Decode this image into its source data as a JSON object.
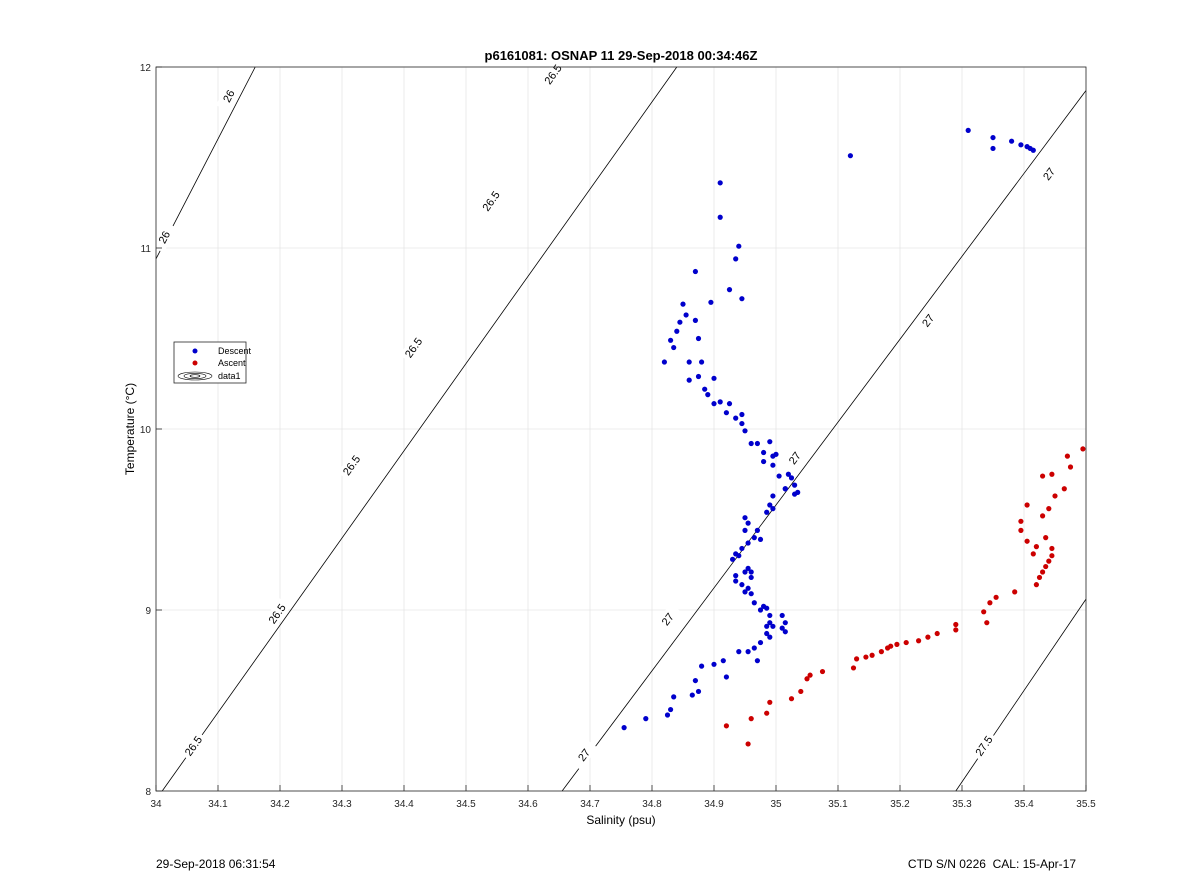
{
  "chart_data": {
    "type": "scatter",
    "title": "p6161081: OSNAP 11 29-Sep-2018 00:34:46Z",
    "xlabel": "Salinity (psu)",
    "ylabel": "Temperature (°C)",
    "xlim": [
      34,
      35.5
    ],
    "ylim": [
      8,
      12
    ],
    "x_ticks": [
      "34",
      "34.1",
      "34.2",
      "34.3",
      "34.4",
      "34.5",
      "34.6",
      "34.7",
      "34.8",
      "34.9",
      "35",
      "35.1",
      "35.2",
      "35.3",
      "35.4",
      "35.5"
    ],
    "y_ticks": [
      "8",
      "9",
      "10",
      "11",
      "12"
    ],
    "grid": true,
    "legend": {
      "placement": "left",
      "entries": [
        {
          "label": "Descent",
          "color": "#0000cc"
        },
        {
          "label": "Ascent",
          "color": "#cc0000"
        },
        {
          "label": "data1",
          "color": "#000000"
        }
      ]
    },
    "series": [
      {
        "name": "Descent",
        "color": "#0000cc",
        "points": [
          [
            35.31,
            11.65
          ],
          [
            35.35,
            11.61
          ],
          [
            35.38,
            11.59
          ],
          [
            35.395,
            11.57
          ],
          [
            35.405,
            11.56
          ],
          [
            35.41,
            11.55
          ],
          [
            35.415,
            11.54
          ],
          [
            35.35,
            11.55
          ],
          [
            35.12,
            11.51
          ],
          [
            34.91,
            11.36
          ],
          [
            34.91,
            11.17
          ],
          [
            34.94,
            11.01
          ],
          [
            34.935,
            10.94
          ],
          [
            34.87,
            10.87
          ],
          [
            34.925,
            10.77
          ],
          [
            34.945,
            10.72
          ],
          [
            34.895,
            10.7
          ],
          [
            34.85,
            10.69
          ],
          [
            34.855,
            10.63
          ],
          [
            34.87,
            10.6
          ],
          [
            34.845,
            10.59
          ],
          [
            34.84,
            10.54
          ],
          [
            34.875,
            10.5
          ],
          [
            34.83,
            10.49
          ],
          [
            34.835,
            10.45
          ],
          [
            34.86,
            10.37
          ],
          [
            34.88,
            10.37
          ],
          [
            34.82,
            10.37
          ],
          [
            34.875,
            10.29
          ],
          [
            34.9,
            10.28
          ],
          [
            34.86,
            10.27
          ],
          [
            34.885,
            10.22
          ],
          [
            34.89,
            10.19
          ],
          [
            34.91,
            10.15
          ],
          [
            34.9,
            10.14
          ],
          [
            34.925,
            10.14
          ],
          [
            34.92,
            10.09
          ],
          [
            34.945,
            10.08
          ],
          [
            34.935,
            10.06
          ],
          [
            34.945,
            10.03
          ],
          [
            34.95,
            9.99
          ],
          [
            34.96,
            9.92
          ],
          [
            34.97,
            9.92
          ],
          [
            34.99,
            9.93
          ],
          [
            34.98,
            9.87
          ],
          [
            34.995,
            9.85
          ],
          [
            35.0,
            9.86
          ],
          [
            34.98,
            9.82
          ],
          [
            34.995,
            9.8
          ],
          [
            35.02,
            9.75
          ],
          [
            35.025,
            9.73
          ],
          [
            35.005,
            9.74
          ],
          [
            35.03,
            9.69
          ],
          [
            35.015,
            9.67
          ],
          [
            35.03,
            9.64
          ],
          [
            35.035,
            9.65
          ],
          [
            35.015,
            9.67
          ],
          [
            34.995,
            9.63
          ],
          [
            34.99,
            9.58
          ],
          [
            34.995,
            9.56
          ],
          [
            34.985,
            9.54
          ],
          [
            34.95,
            9.51
          ],
          [
            34.955,
            9.48
          ],
          [
            34.97,
            9.44
          ],
          [
            34.95,
            9.44
          ],
          [
            34.975,
            9.39
          ],
          [
            34.965,
            9.4
          ],
          [
            34.955,
            9.37
          ],
          [
            34.945,
            9.34
          ],
          [
            34.935,
            9.31
          ],
          [
            34.94,
            9.3
          ],
          [
            34.93,
            9.28
          ],
          [
            34.955,
            9.23
          ],
          [
            34.95,
            9.21
          ],
          [
            34.96,
            9.21
          ],
          [
            34.935,
            9.19
          ],
          [
            34.96,
            9.18
          ],
          [
            34.935,
            9.16
          ],
          [
            34.945,
            9.14
          ],
          [
            34.955,
            9.12
          ],
          [
            34.95,
            9.1
          ],
          [
            34.96,
            9.09
          ],
          [
            34.965,
            9.04
          ],
          [
            34.98,
            9.02
          ],
          [
            34.985,
            9.01
          ],
          [
            34.975,
            9.0
          ],
          [
            34.99,
            8.97
          ],
          [
            35.01,
            8.97
          ],
          [
            34.99,
            8.93
          ],
          [
            35.015,
            8.93
          ],
          [
            34.985,
            8.91
          ],
          [
            34.995,
            8.91
          ],
          [
            35.01,
            8.9
          ],
          [
            34.985,
            8.87
          ],
          [
            35.015,
            8.88
          ],
          [
            34.99,
            8.85
          ],
          [
            34.975,
            8.82
          ],
          [
            34.965,
            8.79
          ],
          [
            34.955,
            8.77
          ],
          [
            34.94,
            8.77
          ],
          [
            34.97,
            8.72
          ],
          [
            34.915,
            8.72
          ],
          [
            34.9,
            8.7
          ],
          [
            34.88,
            8.69
          ],
          [
            34.92,
            8.63
          ],
          [
            34.87,
            8.61
          ],
          [
            34.875,
            8.55
          ],
          [
            34.865,
            8.53
          ],
          [
            34.835,
            8.52
          ],
          [
            34.83,
            8.45
          ],
          [
            34.825,
            8.42
          ],
          [
            34.79,
            8.4
          ],
          [
            34.755,
            8.35
          ]
        ]
      },
      {
        "name": "Ascent",
        "color": "#cc0000",
        "points": [
          [
            35.495,
            9.89
          ],
          [
            35.47,
            9.85
          ],
          [
            35.445,
            9.75
          ],
          [
            35.43,
            9.74
          ],
          [
            35.475,
            9.79
          ],
          [
            35.465,
            9.67
          ],
          [
            35.45,
            9.63
          ],
          [
            35.405,
            9.58
          ],
          [
            35.44,
            9.56
          ],
          [
            35.43,
            9.52
          ],
          [
            35.395,
            9.49
          ],
          [
            35.395,
            9.44
          ],
          [
            35.435,
            9.4
          ],
          [
            35.405,
            9.38
          ],
          [
            35.42,
            9.35
          ],
          [
            35.445,
            9.34
          ],
          [
            35.415,
            9.31
          ],
          [
            35.445,
            9.3
          ],
          [
            35.44,
            9.27
          ],
          [
            35.435,
            9.24
          ],
          [
            35.43,
            9.21
          ],
          [
            35.425,
            9.18
          ],
          [
            35.42,
            9.14
          ],
          [
            35.385,
            9.1
          ],
          [
            35.355,
            9.07
          ],
          [
            35.345,
            9.04
          ],
          [
            35.335,
            8.99
          ],
          [
            35.34,
            8.93
          ],
          [
            35.29,
            8.92
          ],
          [
            35.29,
            8.89
          ],
          [
            35.26,
            8.87
          ],
          [
            35.245,
            8.85
          ],
          [
            35.23,
            8.83
          ],
          [
            35.21,
            8.82
          ],
          [
            35.195,
            8.81
          ],
          [
            35.185,
            8.8
          ],
          [
            35.18,
            8.79
          ],
          [
            35.17,
            8.77
          ],
          [
            35.155,
            8.75
          ],
          [
            35.145,
            8.74
          ],
          [
            35.13,
            8.73
          ],
          [
            35.125,
            8.68
          ],
          [
            35.075,
            8.66
          ],
          [
            35.055,
            8.64
          ],
          [
            35.05,
            8.62
          ],
          [
            35.04,
            8.55
          ],
          [
            35.025,
            8.51
          ],
          [
            34.99,
            8.49
          ],
          [
            34.985,
            8.43
          ],
          [
            34.96,
            8.4
          ],
          [
            34.92,
            8.36
          ],
          [
            34.955,
            8.26
          ]
        ]
      }
    ],
    "contours": [
      {
        "label": "26",
        "line": [
          [
            34.0,
            10.94
          ],
          [
            34.16,
            12.0
          ]
        ],
        "labels_at": [
          [
            34.013,
            11.06
          ],
          [
            34.117,
            11.84
          ]
        ]
      },
      {
        "label": "26.5",
        "line": [
          [
            34.01,
            8.0
          ],
          [
            34.84,
            12.0
          ]
        ],
        "labels_at": [
          [
            34.06,
            8.25
          ],
          [
            34.195,
            8.98
          ],
          [
            34.315,
            9.8
          ],
          [
            34.415,
            10.45
          ],
          [
            34.54,
            11.26
          ],
          [
            34.64,
            11.96
          ]
        ]
      },
      {
        "label": "27",
        "line": [
          [
            34.655,
            8.0
          ],
          [
            35.5,
            11.87
          ]
        ],
        "labels_at": [
          [
            34.69,
            8.2
          ],
          [
            34.825,
            8.95
          ],
          [
            35.03,
            9.84
          ],
          [
            35.245,
            10.6
          ],
          [
            35.44,
            11.41
          ]
        ]
      },
      {
        "label": "27.5",
        "line": [
          [
            35.29,
            8.0
          ],
          [
            35.5,
            9.06
          ]
        ],
        "labels_at": [
          [
            35.335,
            8.25
          ]
        ]
      }
    ]
  },
  "footer": {
    "timestamp": "29-Sep-2018 06:31:54",
    "ctd": "CTD S/N 0226  CAL: 15-Apr-17"
  }
}
